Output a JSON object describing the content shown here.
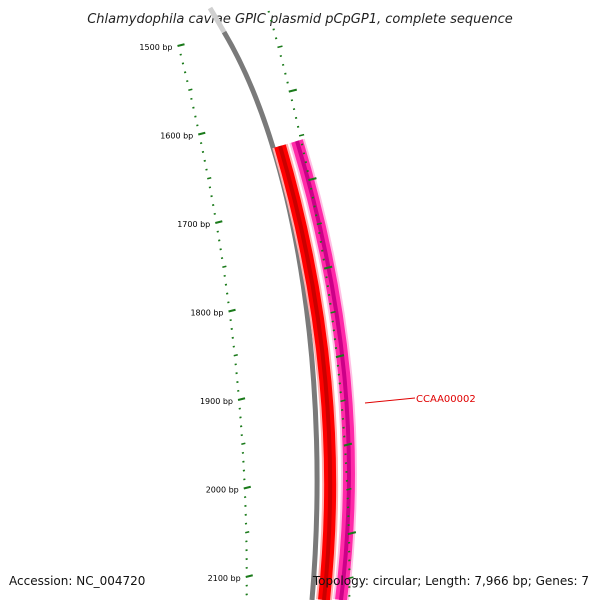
{
  "title": "Chlamydophila caviae GPIC plasmid pCpGP1, complete sequence",
  "footer": {
    "accession": "Accession: NC_004720",
    "summary": "Topology: circular; Length: 7,966 bp; Genes: 7"
  },
  "colors": {
    "tick": "#1a7a1a",
    "backbone": "#7a7a7a",
    "gene_forward": "#ff0000",
    "gene_reverse": "#ff2aa8",
    "label": "#e00000"
  },
  "scale": {
    "labeled_ticks": [
      {
        "bp": 1500,
        "label": "1500 bp"
      },
      {
        "bp": 1600,
        "label": "1600 bp"
      },
      {
        "bp": 1700,
        "label": "1700 bp"
      },
      {
        "bp": 1800,
        "label": "1800 bp"
      },
      {
        "bp": 1900,
        "label": "1900 bp"
      },
      {
        "bp": 2000,
        "label": "2000 bp"
      },
      {
        "bp": 2100,
        "label": "2100 bp"
      }
    ]
  },
  "genes": [
    {
      "name": "CCAA00002",
      "label": "CCAA00002",
      "strand": "both",
      "start_bp": 1620
    }
  ]
}
